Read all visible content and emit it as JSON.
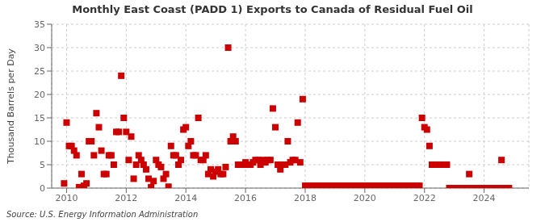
{
  "chart_data": {
    "type": "scatter",
    "title": "Monthly East Coast (PADD 1) Exports to Canada of Residual Fuel Oil",
    "y_label": "Thousand Barrels per Day",
    "annotations": [
      "Source: U.S. Energy Information Administration"
    ],
    "color": "#cc0000",
    "marker": "square",
    "grid": true,
    "xlim": [
      2009.5,
      2025.5
    ],
    "xticks": [
      2010,
      2012,
      2014,
      2016,
      2018,
      2020,
      2022,
      2024
    ],
    "ylim": [
      0,
      35
    ],
    "yticks": [
      0,
      5,
      10,
      15,
      20,
      25,
      30,
      35
    ],
    "x": [
      2009.917,
      2010.0,
      2010.083,
      2010.167,
      2010.25,
      2010.333,
      2010.417,
      2010.5,
      2010.583,
      2010.667,
      2010.75,
      2010.833,
      2010.917,
      2011.0,
      2011.083,
      2011.167,
      2011.25,
      2011.333,
      2011.417,
      2011.5,
      2011.583,
      2011.667,
      2011.75,
      2011.833,
      2011.917,
      2012.0,
      2012.083,
      2012.167,
      2012.25,
      2012.333,
      2012.417,
      2012.5,
      2012.583,
      2012.667,
      2012.75,
      2012.833,
      2012.917,
      2013.0,
      2013.083,
      2013.167,
      2013.25,
      2013.333,
      2013.417,
      2013.5,
      2013.583,
      2013.667,
      2013.75,
      2013.833,
      2013.917,
      2014.0,
      2014.083,
      2014.167,
      2014.25,
      2014.333,
      2014.417,
      2014.5,
      2014.583,
      2014.667,
      2014.75,
      2014.833,
      2014.917,
      2015.0,
      2015.083,
      2015.167,
      2015.25,
      2015.333,
      2015.417,
      2015.5,
      2015.583,
      2015.667,
      2015.75,
      2015.833,
      2015.917,
      2016.0,
      2016.083,
      2016.167,
      2016.25,
      2016.333,
      2016.417,
      2016.5,
      2016.583,
      2016.667,
      2016.75,
      2016.833,
      2016.917,
      2017.0,
      2017.083,
      2017.167,
      2017.25,
      2017.333,
      2017.417,
      2017.5,
      2017.583,
      2017.667,
      2017.75,
      2017.833,
      2017.917,
      2018.0,
      2018.083,
      2018.167,
      2018.25,
      2018.333,
      2018.417,
      2018.5,
      2018.583,
      2018.667,
      2018.75,
      2018.833,
      2018.917,
      2019.0,
      2019.083,
      2019.167,
      2019.25,
      2019.333,
      2019.417,
      2019.5,
      2019.583,
      2019.667,
      2019.75,
      2019.833,
      2019.917,
      2020.0,
      2020.083,
      2020.167,
      2020.25,
      2020.333,
      2020.417,
      2020.5,
      2020.583,
      2020.667,
      2020.75,
      2020.833,
      2020.917,
      2021.0,
      2021.083,
      2021.167,
      2021.25,
      2021.333,
      2021.417,
      2021.5,
      2021.583,
      2021.667,
      2021.75,
      2021.833,
      2021.917,
      2022.0,
      2022.083,
      2022.167,
      2022.25,
      2022.333,
      2022.417,
      2022.5,
      2022.583,
      2022.667,
      2022.75,
      2022.833,
      2022.917,
      2023.0,
      2023.083,
      2023.167,
      2023.25,
      2023.333,
      2023.417,
      2023.5,
      2023.583,
      2023.667,
      2023.75,
      2023.833,
      2023.917,
      2024.0,
      2024.083,
      2024.167,
      2024.25,
      2024.333,
      2024.417,
      2024.5,
      2024.583,
      2024.667,
      2024.75,
      2024.833
    ],
    "values": [
      1.0,
      14.0,
      9.0,
      9.0,
      8.0,
      7.0,
      0.2,
      3.0,
      0.5,
      1.0,
      10.0,
      10.0,
      7.0,
      16.0,
      13.0,
      8.0,
      3.0,
      3.0,
      7.0,
      7.0,
      5.0,
      12.0,
      12.0,
      24.0,
      15.0,
      12.0,
      6.0,
      11.0,
      2.0,
      5.0,
      7.0,
      6.0,
      5.0,
      4.0,
      2.0,
      0.2,
      1.5,
      6.0,
      5.0,
      4.5,
      2.0,
      3.0,
      0.3,
      9.0,
      7.0,
      7.0,
      5.0,
      6.0,
      12.5,
      13.0,
      9.0,
      10.0,
      7.0,
      7.0,
      15.0,
      6.0,
      6.0,
      7.0,
      3.0,
      4.0,
      2.5,
      3.5,
      4.0,
      3.0,
      3.0,
      4.5,
      30.0,
      10.0,
      11.0,
      10.0,
      5.0,
      5.0,
      5.0,
      5.5,
      5.0,
      5.0,
      5.5,
      6.0,
      6.0,
      5.0,
      6.0,
      5.5,
      6.0,
      6.0,
      17.0,
      13.0,
      5.0,
      4.0,
      5.0,
      5.0,
      10.0,
      5.5,
      6.0,
      6.0,
      14.0,
      5.5,
      19.0,
      0.5,
      0.5,
      0.5,
      0.5,
      0.5,
      0.5,
      0.5,
      0.5,
      0.5,
      0.5,
      0.5,
      0.5,
      0.5,
      0.5,
      0.5,
      0.5,
      0.5,
      0.5,
      0.5,
      0.5,
      0.5,
      0.5,
      0.5,
      0.5,
      0.5,
      0.5,
      0.5,
      0.5,
      0.5,
      0.5,
      0.5,
      0.5,
      0.5,
      0.5,
      0.5,
      0.5,
      0.5,
      0.5,
      0.5,
      0.5,
      0.5,
      0.5,
      0.5,
      0.5,
      0.5,
      0.5,
      0.5,
      15.0,
      13.0,
      12.5,
      9.0,
      5.0,
      5.0,
      5.0,
      5.0,
      5.0,
      5.0,
      5.0,
      0.0,
      0.0,
      0.0,
      0.0,
      0.0,
      0.0,
      0.0,
      0.0,
      3.0,
      0.0,
      0.0,
      0.0,
      0.0,
      0.0,
      0.0,
      0.0,
      0.0,
      0.0,
      0.0,
      0.0,
      0.0,
      6.0,
      0.0,
      0.0,
      0.0
    ]
  }
}
